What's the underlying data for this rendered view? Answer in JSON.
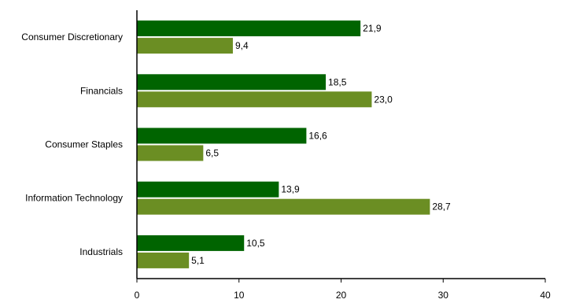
{
  "chart_data": {
    "type": "bar",
    "orientation": "horizontal",
    "categories": [
      "Consumer Discretionary",
      "Financials",
      "Consumer Staples",
      "Information Technology",
      "Industrials"
    ],
    "series": [
      {
        "values": [
          21.9,
          18.5,
          16.6,
          13.9,
          10.5
        ],
        "value_labels": [
          "21,9",
          "18,5",
          "16,6",
          "13,9",
          "10,5"
        ],
        "color": "#006400"
      },
      {
        "values": [
          9.4,
          23.0,
          6.5,
          28.7,
          5.1
        ],
        "value_labels": [
          "9,4",
          "23,0",
          "6,5",
          "28,7",
          "5,1"
        ],
        "color": "#6b8e23"
      }
    ],
    "xlim": [
      0,
      40
    ],
    "xticks": [
      0,
      10,
      20,
      30,
      40
    ],
    "grid": false,
    "legend": "none",
    "title": "",
    "xlabel": "",
    "ylabel": ""
  }
}
